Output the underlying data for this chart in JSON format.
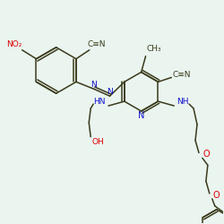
{
  "bg_color": "#eaf5f0",
  "bond_color": "#3a3a1a",
  "N_color": "#1010cc",
  "O_color": "#dd0000",
  "figsize": [
    2.5,
    2.5
  ],
  "dpi": 100,
  "xlim": [
    0,
    250
  ],
  "ylim": [
    0,
    250
  ]
}
